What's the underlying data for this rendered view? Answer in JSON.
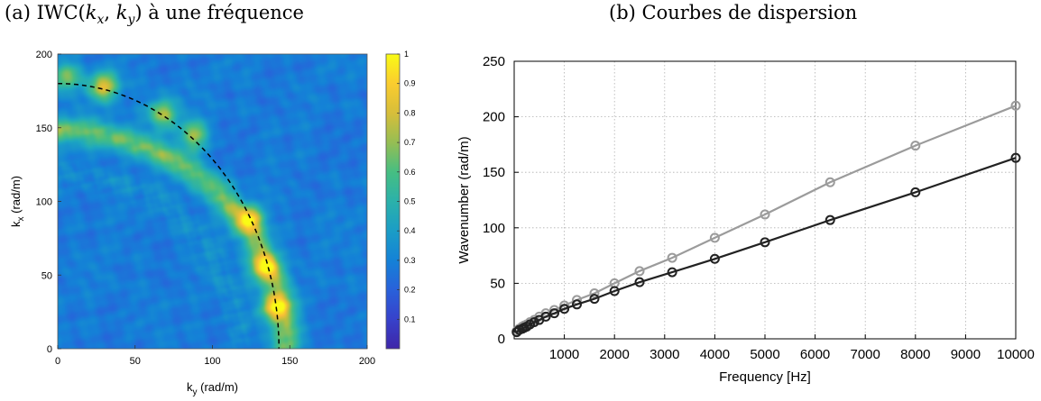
{
  "panel_a": {
    "title_prefix": "(a) IWC(",
    "title_k1": "k",
    "title_s1": "x",
    "title_sep": ", ",
    "title_k2": "k",
    "title_s2": "y",
    "title_suffix": ") à une fréquence"
  },
  "panel_b": {
    "title": "(b) Courbes de dispersion"
  },
  "chart_data": [
    {
      "type": "heatmap",
      "xlabel": "k_y (rad/m)",
      "ylabel": "k_x (rad/m)",
      "xlim": [
        0,
        200
      ],
      "ylim": [
        0,
        200
      ],
      "xticks": [
        0,
        50,
        100,
        150,
        200
      ],
      "yticks": [
        0,
        50,
        100,
        150,
        200
      ],
      "colorbar": {
        "range": [
          0,
          1
        ],
        "ticks": [
          0.1,
          0.2,
          0.3,
          0.4,
          0.5,
          0.6,
          0.7,
          0.8,
          0.9,
          1
        ]
      },
      "overlay": {
        "style": "dashed-circle",
        "radius": 144
      },
      "colors": {
        "low": "#3e26a8",
        "mid": "#2db7a9",
        "high": "#f9fb15"
      }
    },
    {
      "type": "line",
      "xlabel": "Frequency [Hz]",
      "ylabel": "Wavenumber (rad/m)",
      "xlim": [
        0,
        10000
      ],
      "ylim": [
        0,
        250
      ],
      "xticks": [
        1000,
        2000,
        3000,
        4000,
        5000,
        6000,
        7000,
        8000,
        9000,
        10000
      ],
      "yticks": [
        0,
        50,
        100,
        150,
        200,
        250
      ],
      "grid": true,
      "x": [
        50,
        100,
        160,
        200,
        250,
        315,
        400,
        500,
        630,
        800,
        1000,
        1250,
        1600,
        2000,
        2500,
        3150,
        4000,
        5000,
        6300,
        8000,
        10000
      ],
      "series": [
        {
          "color": "#9b9b9b",
          "values": [
            7,
            9,
            11,
            12,
            13,
            15,
            17,
            20,
            23,
            26,
            30,
            35,
            41,
            50,
            61,
            73,
            91,
            112,
            141,
            174,
            210
          ]
        },
        {
          "color": "#222222",
          "values": [
            6,
            8,
            9,
            10,
            11,
            13,
            15,
            17,
            20,
            23,
            27,
            31,
            36,
            43,
            51,
            60,
            72,
            87,
            107,
            132,
            163
          ]
        }
      ]
    }
  ]
}
